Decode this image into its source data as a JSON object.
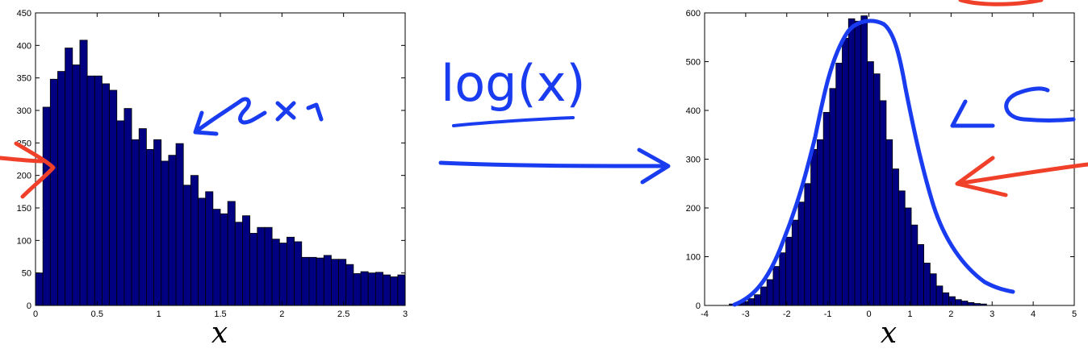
{
  "chart_data": [
    {
      "type": "bar",
      "subtype": "histogram",
      "xlabel": "x",
      "ylabel": "",
      "xlim": [
        0,
        3
      ],
      "ylim": [
        0,
        450
      ],
      "xticks": [
        "0",
        "0.5",
        "1",
        "1.5",
        "2",
        "2.5",
        "3"
      ],
      "yticks": [
        "0",
        "50",
        "100",
        "150",
        "200",
        "250",
        "300",
        "350",
        "400",
        "450"
      ],
      "bin_start": 0,
      "bin_width": 0.06,
      "values": [
        50,
        305,
        348,
        360,
        396,
        370,
        408,
        353,
        353,
        341,
        331,
        284,
        303,
        255,
        272,
        240,
        255,
        222,
        231,
        249,
        185,
        200,
        165,
        175,
        148,
        141,
        160,
        128,
        138,
        111,
        120,
        120,
        102,
        96,
        105,
        98,
        74,
        74,
        73,
        77,
        71,
        71,
        63,
        49,
        52,
        50,
        51,
        47,
        44,
        47
      ],
      "bar_color": "#000080",
      "edge_color": "#000000",
      "grid": false
    },
    {
      "type": "bar",
      "subtype": "histogram",
      "xlabel": "x",
      "ylabel": "",
      "xlim": [
        -4,
        5
      ],
      "ylim": [
        0,
        600
      ],
      "xticks": [
        "-4",
        "-3",
        "-2",
        "-1",
        "0",
        "1",
        "2",
        "3",
        "4",
        "5"
      ],
      "yticks": [
        "0",
        "100",
        "200",
        "300",
        "400",
        "500",
        "600"
      ],
      "bin_start": -3.4,
      "bin_width": 0.1528,
      "values": [
        3,
        4,
        8,
        14,
        22,
        38,
        53,
        80,
        108,
        140,
        175,
        212,
        250,
        320,
        340,
        396,
        445,
        497,
        548,
        588,
        583,
        594,
        500,
        475,
        420,
        340,
        280,
        235,
        200,
        165,
        125,
        87,
        65,
        40,
        26,
        18,
        12,
        9,
        6,
        4,
        3
      ],
      "bar_color": "#000080",
      "edge_color": "#000000",
      "grid": false
    }
  ],
  "annotations": {
    "transform_label": "log(x)"
  }
}
